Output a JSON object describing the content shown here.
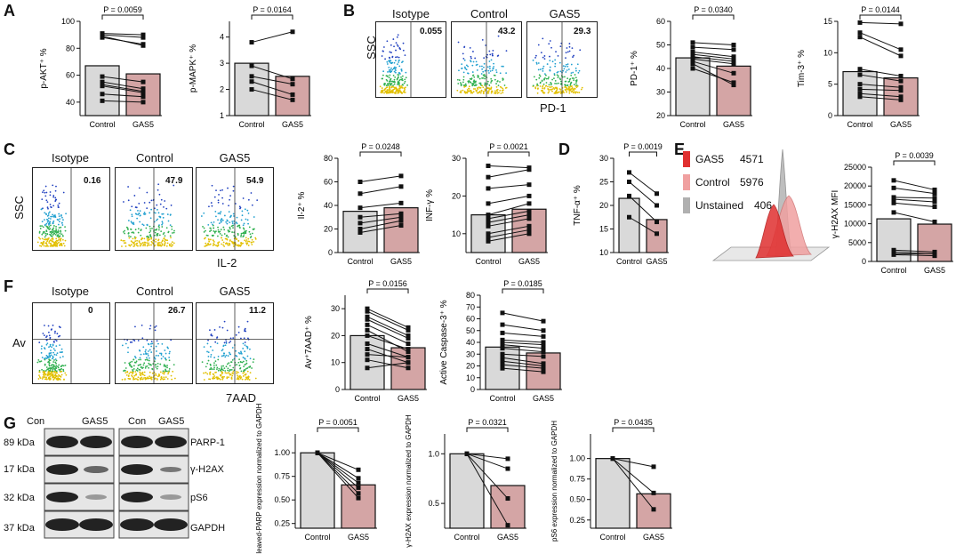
{
  "panels": {
    "A": "A",
    "B": "B",
    "C": "C",
    "D": "D",
    "E": "E",
    "F": "F",
    "G": "G"
  },
  "flow": {
    "B": {
      "titles": [
        "Isotype",
        "Control",
        "GAS5"
      ],
      "values": [
        "0.055",
        "43.2",
        "29.3"
      ],
      "ylabel": "SSC",
      "xlabel": "PD-1"
    },
    "C": {
      "titles": [
        "Isotype",
        "Control",
        "GAS5"
      ],
      "values": [
        "0.16",
        "47.9",
        "54.9"
      ],
      "ylabel": "SSC",
      "xlabel": "IL-2"
    },
    "F": {
      "titles": [
        "Isotype",
        "Control",
        "GAS5"
      ],
      "values": [
        "0",
        "26.7",
        "11.2"
      ],
      "ylabel": "Av",
      "xlabel": "7AAD"
    }
  },
  "western": {
    "headers": [
      "Con",
      "GAS5",
      "Con",
      "GAS5"
    ],
    "kda": [
      "89 kDa",
      "17 kDa",
      "32 kDa",
      "37 kDa"
    ],
    "proteins": [
      "PARP-1",
      "γ-H2AX",
      "pS6",
      "GAPDH"
    ]
  },
  "histogram": {
    "legend": [
      {
        "name": "GAS5",
        "value": "4571"
      },
      {
        "name": "Control",
        "value": "5976"
      },
      {
        "name": "Unstained",
        "value": "406"
      }
    ],
    "colors": {
      "GAS5": "#e03030",
      "Control": "#f0a0a0",
      "Unstained": "#b0b0b0"
    }
  },
  "colors": {
    "control": "#d9d9d9",
    "gas5": "#d4a5a5",
    "stroke": "#111111"
  },
  "chart_data": [
    {
      "id": "pakt",
      "type": "bar",
      "categories": [
        "Control",
        "GAS5"
      ],
      "values": [
        67,
        61
      ],
      "ylabel": "p-AKT⁺ %",
      "ylim": [
        30,
        100
      ],
      "ticks": [
        40,
        60,
        80,
        100
      ],
      "pvalue": "P = 0.0059",
      "pairs": [
        [
          91,
          90
        ],
        [
          90,
          88
        ],
        [
          89,
          82
        ],
        [
          88,
          83
        ],
        [
          59,
          55
        ],
        [
          55,
          50
        ],
        [
          53,
          48
        ],
        [
          52,
          47
        ],
        [
          46,
          44
        ],
        [
          41,
          40
        ]
      ]
    },
    {
      "id": "pmapk",
      "type": "bar",
      "categories": [
        "Control",
        "GAS5"
      ],
      "values": [
        3.0,
        2.5
      ],
      "ylabel": "p-MAPK⁺ %",
      "ylim": [
        1,
        4.6
      ],
      "ticks": [
        1,
        2,
        3,
        4
      ],
      "pvalue": "P = 0.0164",
      "pairs": [
        [
          3.8,
          4.2
        ],
        [
          2.9,
          2.4
        ],
        [
          2.5,
          2.2
        ],
        [
          2.3,
          1.8
        ],
        [
          2.0,
          1.6
        ]
      ]
    },
    {
      "id": "pd1",
      "type": "bar",
      "categories": [
        "Control",
        "GAS5"
      ],
      "values": [
        44.5,
        41
      ],
      "ylabel": "PD-1⁺ %",
      "ylim": [
        20,
        60
      ],
      "ticks": [
        20,
        30,
        40,
        50,
        60
      ],
      "pvalue": "P = 0.0340",
      "pairs": [
        [
          51,
          50
        ],
        [
          49,
          48
        ],
        [
          47,
          45
        ],
        [
          46,
          44
        ],
        [
          45,
          43
        ],
        [
          44,
          42
        ],
        [
          43,
          38
        ],
        [
          42,
          33
        ],
        [
          40,
          34
        ]
      ]
    },
    {
      "id": "tim3",
      "type": "bar",
      "categories": [
        "Control",
        "GAS5"
      ],
      "values": [
        7,
        6
      ],
      "ylabel": "Tim-3⁺ %",
      "ylim": [
        0,
        15
      ],
      "ticks": [
        0,
        5,
        10,
        15
      ],
      "pvalue": "P = 0.0144",
      "pairs": [
        [
          14.8,
          14.6
        ],
        [
          13.2,
          10.5
        ],
        [
          12.5,
          9.5
        ],
        [
          7.4,
          6.3
        ],
        [
          6.5,
          5.5
        ],
        [
          5.0,
          4.5
        ],
        [
          4.2,
          4.0
        ],
        [
          3.5,
          3.0
        ],
        [
          3.0,
          2.5
        ]
      ]
    },
    {
      "id": "il2",
      "type": "bar",
      "categories": [
        "Control",
        "GAS5"
      ],
      "values": [
        35,
        38
      ],
      "ylabel": "Il-2⁺ %",
      "ylim": [
        0,
        80
      ],
      "ticks": [
        0,
        20,
        40,
        60,
        80
      ],
      "pvalue": "P = 0.0248",
      "pairs": [
        [
          60,
          65
        ],
        [
          50,
          56
        ],
        [
          38,
          42
        ],
        [
          30,
          33
        ],
        [
          25,
          30
        ],
        [
          20,
          27
        ],
        [
          17,
          23
        ]
      ]
    },
    {
      "id": "infg",
      "type": "bar",
      "categories": [
        "Control",
        "GAS5"
      ],
      "values": [
        15,
        16.5
      ],
      "ylabel": "INF-γ %",
      "ylim": [
        5,
        30
      ],
      "ticks": [
        10,
        20,
        30
      ],
      "pvalue": "P = 0.0021",
      "pairs": [
        [
          28,
          27.5
        ],
        [
          25,
          27
        ],
        [
          22,
          23
        ],
        [
          18,
          20
        ],
        [
          15,
          18
        ],
        [
          14,
          16
        ],
        [
          13,
          15
        ],
        [
          12,
          14
        ],
        [
          10,
          12
        ],
        [
          9,
          11
        ],
        [
          8,
          10
        ]
      ]
    },
    {
      "id": "tnfa",
      "type": "bar",
      "categories": [
        "Control",
        "GAS5"
      ],
      "values": [
        21.5,
        17
      ],
      "ylabel": "TNF-α⁺ %",
      "ylim": [
        10,
        30
      ],
      "ticks": [
        10,
        15,
        20,
        25,
        30
      ],
      "pvalue": "P = 0.0019",
      "pairs": [
        [
          27,
          22.5
        ],
        [
          25,
          20
        ],
        [
          22,
          16.5
        ],
        [
          17.5,
          14
        ]
      ]
    },
    {
      "id": "h2ax",
      "type": "bar",
      "categories": [
        "Control",
        "GAS5"
      ],
      "values": [
        11300,
        9900
      ],
      "ylabel": "γ-H2AX MFI",
      "ylim": [
        0,
        25000
      ],
      "ticks": [
        0,
        5000,
        10000,
        15000,
        20000,
        25000
      ],
      "pvalue": "P = 0.0039",
      "pairs": [
        [
          21500,
          19000
        ],
        [
          19500,
          18000
        ],
        [
          17000,
          16800
        ],
        [
          16500,
          15800
        ],
        [
          15500,
          14500
        ],
        [
          13000,
          10500
        ],
        [
          3000,
          2500
        ],
        [
          2500,
          2000
        ],
        [
          2000,
          2100
        ],
        [
          1800,
          1500
        ]
      ]
    },
    {
      "id": "av7aad",
      "type": "bar",
      "categories": [
        "Control",
        "GAS5"
      ],
      "values": [
        20,
        15.5
      ],
      "ylabel": "Av⁺7AAD⁺ %",
      "ylim": [
        0,
        35
      ],
      "ticks": [
        0,
        10,
        20,
        30
      ],
      "pvalue": "P = 0.0156",
      "pairs": [
        [
          30,
          23
        ],
        [
          29,
          22
        ],
        [
          27,
          20
        ],
        [
          26,
          19
        ],
        [
          24,
          17
        ],
        [
          22,
          14
        ],
        [
          20,
          15
        ],
        [
          17,
          12
        ],
        [
          15,
          10
        ],
        [
          13,
          12
        ],
        [
          11,
          8
        ],
        [
          8,
          10
        ]
      ]
    },
    {
      "id": "caspase",
      "type": "bar",
      "categories": [
        "Control",
        "GAS5"
      ],
      "values": [
        36,
        31
      ],
      "ylabel": "Active Caspase-3⁺ %",
      "ylim": [
        0,
        80
      ],
      "ticks": [
        0,
        10,
        20,
        30,
        40,
        50,
        60,
        70,
        80
      ],
      "pvalue": "P = 0.0185",
      "pairs": [
        [
          65,
          58
        ],
        [
          55,
          50
        ],
        [
          48,
          45
        ],
        [
          42,
          40
        ],
        [
          40,
          38
        ],
        [
          38,
          35
        ],
        [
          35,
          32
        ],
        [
          30,
          28
        ],
        [
          27,
          22
        ],
        [
          24,
          20
        ],
        [
          21,
          18
        ],
        [
          18,
          15
        ]
      ]
    },
    {
      "id": "parp",
      "type": "bar",
      "categories": [
        "Control",
        "GAS5"
      ],
      "values": [
        1.0,
        0.66
      ],
      "ylabel": "Cleaved-PARP expression normalized to GAPDH",
      "ylim": [
        0.2,
        1.2
      ],
      "ticks": [
        0.25,
        0.5,
        0.75,
        1.0
      ],
      "tickLabels": [
        "0.25",
        "0.50",
        "0.75",
        "1.00"
      ],
      "pvalue": "P = 0.0051",
      "pairs": [
        [
          1,
          0.82
        ],
        [
          1,
          0.73
        ],
        [
          1,
          0.68
        ],
        [
          1,
          0.63
        ],
        [
          1,
          0.57
        ],
        [
          1,
          0.52
        ]
      ]
    },
    {
      "id": "h2axwb",
      "type": "bar",
      "categories": [
        "Control",
        "GAS5"
      ],
      "values": [
        1.0,
        0.68
      ],
      "ylabel": "γ-H2AX expression normalized to GAPDH",
      "ylim": [
        0.25,
        1.2
      ],
      "ticks": [
        0.5,
        1.0
      ],
      "tickLabels": [
        "0.5",
        "1.0"
      ],
      "pvalue": "P = 0.0321",
      "pairs": [
        [
          1,
          0.95
        ],
        [
          1,
          0.85
        ],
        [
          1,
          0.55
        ],
        [
          1,
          0.28
        ]
      ]
    },
    {
      "id": "ps6",
      "type": "bar",
      "categories": [
        "Control",
        "GAS5"
      ],
      "values": [
        1.0,
        0.57
      ],
      "ylabel": "pS6 expression normalized to GAPDH",
      "ylim": [
        0.15,
        1.3
      ],
      "ticks": [
        0.25,
        0.5,
        0.75,
        1.0
      ],
      "tickLabels": [
        "0.25",
        "0.50",
        "0.75",
        "1.00"
      ],
      "pvalue": "P = 0.0435",
      "pairs": [
        [
          1,
          0.9
        ],
        [
          1,
          0.58
        ],
        [
          1,
          0.38
        ]
      ]
    }
  ]
}
